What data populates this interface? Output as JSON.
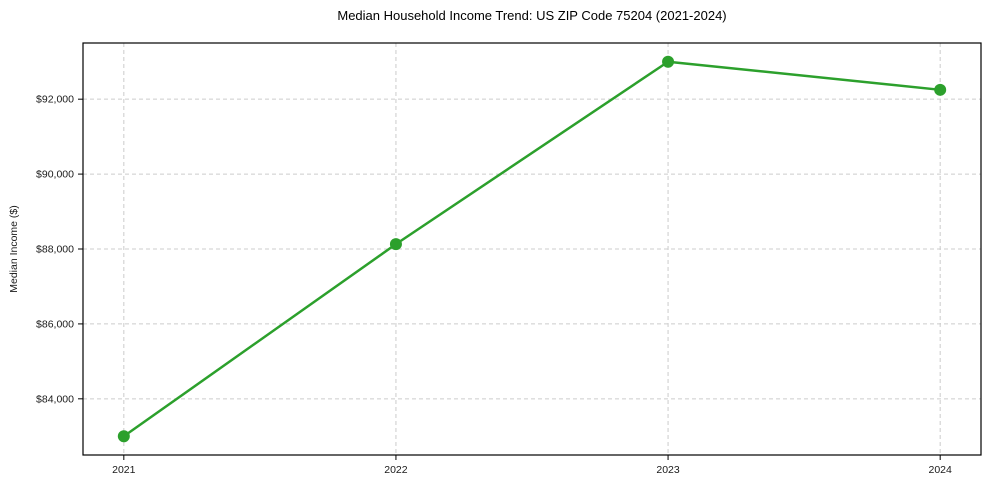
{
  "chart": {
    "title": "Median Household Income Trend: US ZIP Code 75204 (2021-2024)",
    "ylabel": "Median Income ($)"
  },
  "chart_data": {
    "type": "line",
    "title": "Median Household Income Trend: US ZIP Code 75204 (2021-2024)",
    "xlabel": "",
    "ylabel": "Median Income ($)",
    "x": [
      2021,
      2022,
      2023,
      2024
    ],
    "x_labels": [
      "2021",
      "2022",
      "2023",
      "2024"
    ],
    "values": [
      83000,
      88130,
      93000,
      92250
    ],
    "xlim": [
      2020.85,
      2024.15
    ],
    "ylim": [
      82500,
      93500
    ],
    "yticks": [
      84000,
      86000,
      88000,
      90000,
      92000
    ],
    "ytick_labels": [
      "$84,000",
      "$86,000",
      "$88,000",
      "$90,000",
      "$92,000"
    ],
    "grid": true,
    "grid_style": "dashed",
    "grid_color": "#cccccc",
    "line_color": "#2ca02c",
    "marker": "circle",
    "marker_size": 6,
    "line_width": 2.5,
    "legend_position": "none",
    "spine_color": "#000000",
    "background_color": "#ffffff"
  }
}
